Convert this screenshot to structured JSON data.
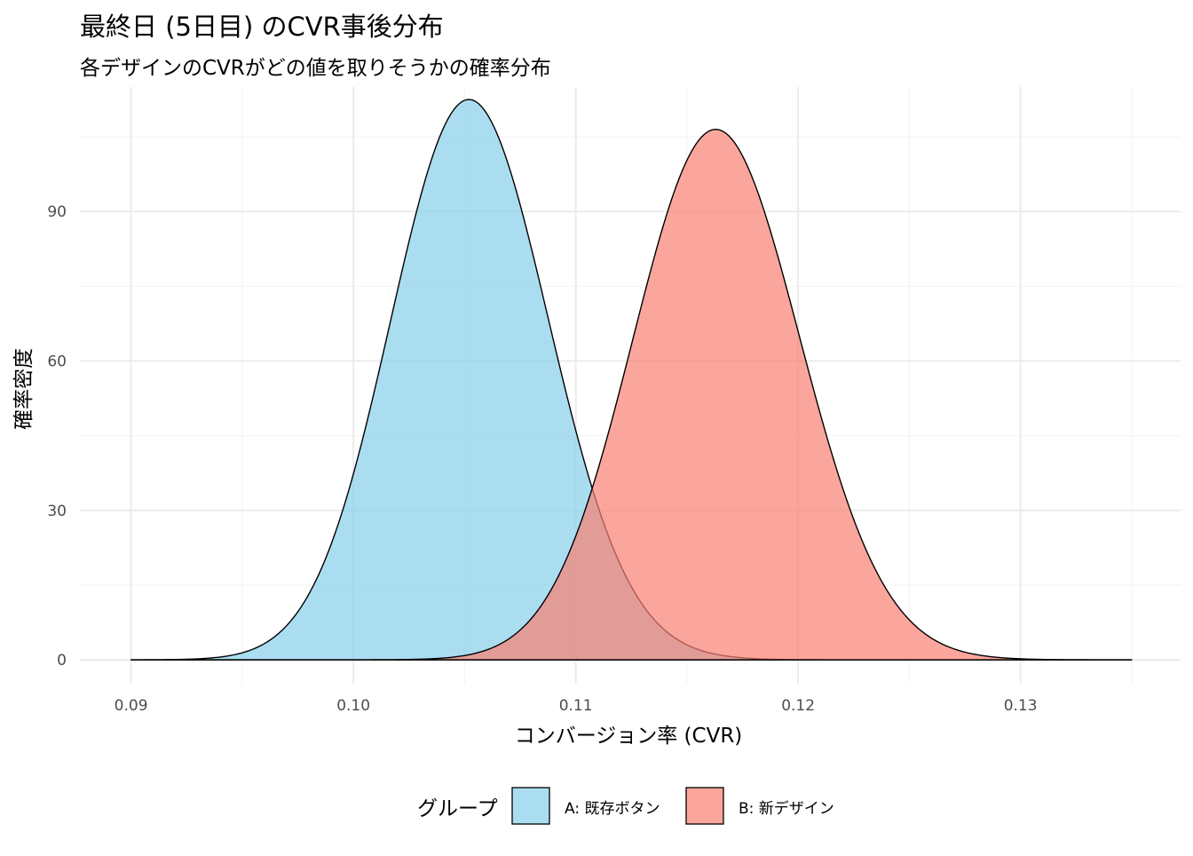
{
  "chart_data": {
    "type": "area",
    "title": "最終日 (5日目) のCVR事後分布",
    "subtitle": "各デザインのCVRがどの値を取りそうかの確率分布",
    "xlabel": "コンバージョン率 (CVR)",
    "ylabel": "確率密度",
    "xlim": [
      0.0877,
      0.1372
    ],
    "ylim": [
      -4.8,
      115
    ],
    "x_ticks": [
      0.09,
      0.1,
      0.11,
      0.12,
      0.13
    ],
    "x_tick_labels": [
      "0.09",
      "0.10",
      "0.11",
      "0.12",
      "0.13"
    ],
    "y_ticks": [
      0,
      30,
      60,
      90
    ],
    "y_tick_labels": [
      "0",
      "30",
      "60",
      "90"
    ],
    "grid": true,
    "x_domain": [
      0.09,
      0.135
    ],
    "legend": {
      "title": "グループ",
      "position": "bottom"
    },
    "series": [
      {
        "name": "A: 既存ボタン",
        "color": "#87CEEB",
        "shape": "beta",
        "mean": 0.1053,
        "sd": 0.00355,
        "peak_density": 112.5
      },
      {
        "name": "B: 新デザイン",
        "color": "#FA8072",
        "shape": "beta",
        "mean": 0.1164,
        "sd": 0.00375,
        "peak_density": 106.5
      }
    ]
  }
}
